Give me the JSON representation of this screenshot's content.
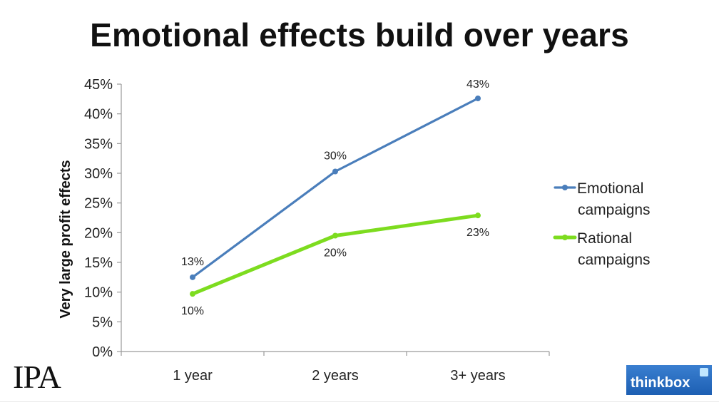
{
  "chart_data": {
    "type": "line",
    "title": "Emotional effects build over years",
    "categories": [
      "1 year",
      "2 years",
      "3+ years"
    ],
    "series": [
      {
        "name": "Emotional campaigns",
        "legend_lines": [
          "Emotional",
          "campaigns"
        ],
        "color": "#4a7ebb",
        "values": [
          12.5,
          30.3,
          42.6
        ],
        "labels": [
          "13%",
          "30%",
          "43%"
        ]
      },
      {
        "name": "Rational campaigns",
        "legend_lines": [
          "Rational",
          "campaigns"
        ],
        "color": "#7ddc1f",
        "values": [
          9.7,
          19.5,
          22.9
        ],
        "labels": [
          "10%",
          "20%",
          "23%"
        ]
      }
    ],
    "ylabel": "Very large profit effects",
    "xlabel": "",
    "ylim": [
      0,
      45
    ],
    "yticks": [
      0,
      5,
      10,
      15,
      20,
      25,
      30,
      35,
      40,
      45
    ],
    "ytick_labels": [
      "0%",
      "5%",
      "10%",
      "15%",
      "20%",
      "25%",
      "30%",
      "35%",
      "40%",
      "45%"
    ],
    "legend_position": "right",
    "grid": false
  },
  "logos": {
    "left": "IPA",
    "right": "thinkbox"
  }
}
